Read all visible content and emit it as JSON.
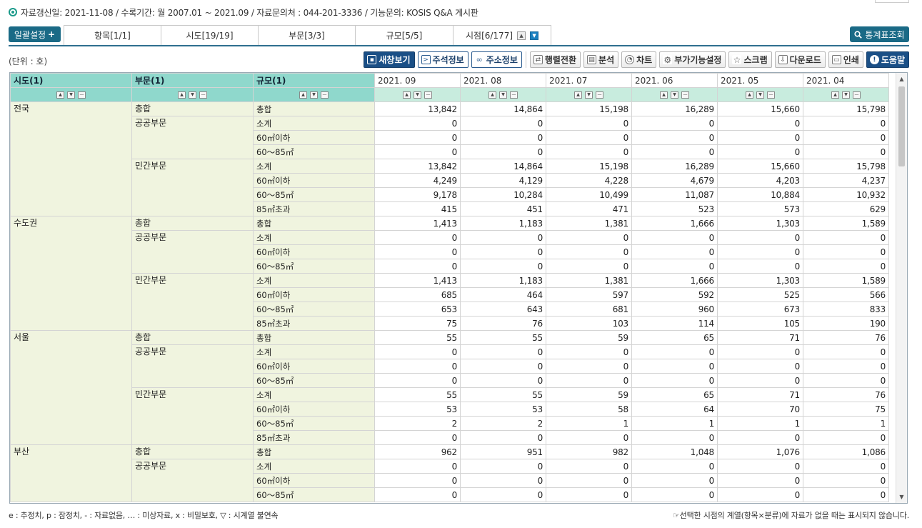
{
  "info": {
    "text": "자료갱신일: 2021-11-08 / 수록기간: 월 2007.01 ~ 2021.09 / 자료문의처 : 044-201-3336 / 기능문의: KOSIS Q&A 게시판"
  },
  "tabbar": {
    "batch_label": "일괄설정",
    "tabs": [
      "항목[1/1]",
      "시도[19/19]",
      "부문[3/3]",
      "규모[5/5]",
      "시점[6/177]"
    ],
    "stat_label": "통계표조회"
  },
  "unit": "(단위 : 호)",
  "toolbar": {
    "new_window": "새창보기",
    "annotation": "주석정보",
    "url_info": "주소정보",
    "pivot": "행렬전환",
    "analysis": "분석",
    "chart": "차트",
    "extra": "부가기능설정",
    "scrap": "스크랩",
    "download": "다운로드",
    "print": "인쇄",
    "help": "도움말"
  },
  "table": {
    "dim_headers": [
      "시도(1)",
      "부문(1)",
      "규모(1)"
    ],
    "periods": [
      "2021. 09",
      "2021. 08",
      "2021. 07",
      "2021. 06",
      "2021. 05",
      "2021. 04"
    ],
    "rows": [
      {
        "c1": "전국",
        "c2": "총합",
        "c3": "총합",
        "v": [
          "13,842",
          "14,864",
          "15,198",
          "16,289",
          "15,660",
          "15,798"
        ]
      },
      {
        "c1": "",
        "c2": "공공부문",
        "c3": "소계",
        "v": [
          "0",
          "0",
          "0",
          "0",
          "0",
          "0"
        ]
      },
      {
        "c1": "",
        "c2": "",
        "c3": "60㎡이하",
        "v": [
          "0",
          "0",
          "0",
          "0",
          "0",
          "0"
        ]
      },
      {
        "c1": "",
        "c2": "",
        "c3": "60～85㎡",
        "v": [
          "0",
          "0",
          "0",
          "0",
          "0",
          "0"
        ]
      },
      {
        "c1": "",
        "c2": "민간부문",
        "c3": "소계",
        "v": [
          "13,842",
          "14,864",
          "15,198",
          "16,289",
          "15,660",
          "15,798"
        ]
      },
      {
        "c1": "",
        "c2": "",
        "c3": "60㎡이하",
        "v": [
          "4,249",
          "4,129",
          "4,228",
          "4,679",
          "4,203",
          "4,237"
        ]
      },
      {
        "c1": "",
        "c2": "",
        "c3": "60～85㎡",
        "v": [
          "9,178",
          "10,284",
          "10,499",
          "11,087",
          "10,884",
          "10,932"
        ]
      },
      {
        "c1": "",
        "c2": "",
        "c3": "85㎡초과",
        "v": [
          "415",
          "451",
          "471",
          "523",
          "573",
          "629"
        ]
      },
      {
        "c1": "수도권",
        "c2": "총합",
        "c3": "총합",
        "v": [
          "1,413",
          "1,183",
          "1,381",
          "1,666",
          "1,303",
          "1,589"
        ]
      },
      {
        "c1": "",
        "c2": "공공부문",
        "c3": "소계",
        "v": [
          "0",
          "0",
          "0",
          "0",
          "0",
          "0"
        ]
      },
      {
        "c1": "",
        "c2": "",
        "c3": "60㎡이하",
        "v": [
          "0",
          "0",
          "0",
          "0",
          "0",
          "0"
        ]
      },
      {
        "c1": "",
        "c2": "",
        "c3": "60～85㎡",
        "v": [
          "0",
          "0",
          "0",
          "0",
          "0",
          "0"
        ]
      },
      {
        "c1": "",
        "c2": "민간부문",
        "c3": "소계",
        "v": [
          "1,413",
          "1,183",
          "1,381",
          "1,666",
          "1,303",
          "1,589"
        ]
      },
      {
        "c1": "",
        "c2": "",
        "c3": "60㎡이하",
        "v": [
          "685",
          "464",
          "597",
          "592",
          "525",
          "566"
        ]
      },
      {
        "c1": "",
        "c2": "",
        "c3": "60～85㎡",
        "v": [
          "653",
          "643",
          "681",
          "960",
          "673",
          "833"
        ]
      },
      {
        "c1": "",
        "c2": "",
        "c3": "85㎡초과",
        "v": [
          "75",
          "76",
          "103",
          "114",
          "105",
          "190"
        ]
      },
      {
        "c1": "서울",
        "c2": "총합",
        "c3": "총합",
        "v": [
          "55",
          "55",
          "59",
          "65",
          "71",
          "76"
        ]
      },
      {
        "c1": "",
        "c2": "공공부문",
        "c3": "소계",
        "v": [
          "0",
          "0",
          "0",
          "0",
          "0",
          "0"
        ]
      },
      {
        "c1": "",
        "c2": "",
        "c3": "60㎡이하",
        "v": [
          "0",
          "0",
          "0",
          "0",
          "0",
          "0"
        ]
      },
      {
        "c1": "",
        "c2": "",
        "c3": "60～85㎡",
        "v": [
          "0",
          "0",
          "0",
          "0",
          "0",
          "0"
        ]
      },
      {
        "c1": "",
        "c2": "민간부문",
        "c3": "소계",
        "v": [
          "55",
          "55",
          "59",
          "65",
          "71",
          "76"
        ]
      },
      {
        "c1": "",
        "c2": "",
        "c3": "60㎡이하",
        "v": [
          "53",
          "53",
          "58",
          "64",
          "70",
          "75"
        ]
      },
      {
        "c1": "",
        "c2": "",
        "c3": "60～85㎡",
        "v": [
          "2",
          "2",
          "1",
          "1",
          "1",
          "1"
        ]
      },
      {
        "c1": "",
        "c2": "",
        "c3": "85㎡초과",
        "v": [
          "0",
          "0",
          "0",
          "0",
          "0",
          "0"
        ]
      },
      {
        "c1": "부산",
        "c2": "총합",
        "c3": "총합",
        "v": [
          "962",
          "951",
          "982",
          "1,048",
          "1,076",
          "1,086"
        ]
      },
      {
        "c1": "",
        "c2": "공공부문",
        "c3": "소계",
        "v": [
          "0",
          "0",
          "0",
          "0",
          "0",
          "0"
        ]
      },
      {
        "c1": "",
        "c2": "",
        "c3": "60㎡이하",
        "v": [
          "0",
          "0",
          "0",
          "0",
          "0",
          "0"
        ]
      },
      {
        "c1": "",
        "c2": "",
        "c3": "60～85㎡",
        "v": [
          "0",
          "0",
          "0",
          "0",
          "0",
          "0"
        ]
      }
    ]
  },
  "footer": {
    "legend": "e : 추정치, p : 잠정치, - : 자료없음, … : 미상자료, x : 비밀보호, ▽ : 시계열 불연속",
    "note": "☞선택한 시점의 계열(항목×분류)에 자료가 없을 때는 표시되지 않습니다."
  }
}
